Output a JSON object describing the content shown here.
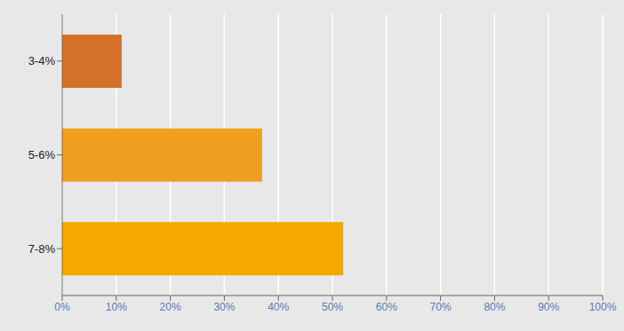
{
  "chart_data": {
    "type": "bar",
    "orientation": "horizontal",
    "categories": [
      "7-8%",
      "5-6%",
      "3-4%"
    ],
    "values": [
      52,
      37,
      11
    ],
    "colors": [
      "#F5A800",
      "#F0A020",
      "#D4702A"
    ],
    "xlim": [
      0,
      100
    ],
    "xticks": [
      {
        "value": 0,
        "label": "0%"
      },
      {
        "value": 10,
        "label": "10%"
      },
      {
        "value": 20,
        "label": "20%"
      },
      {
        "value": 30,
        "label": "30%"
      },
      {
        "value": 40,
        "label": "40%"
      },
      {
        "value": 50,
        "label": "50%"
      },
      {
        "value": 60,
        "label": "60%"
      },
      {
        "value": 70,
        "label": "70%"
      },
      {
        "value": 80,
        "label": "80%"
      },
      {
        "value": 90,
        "label": "90%"
      },
      {
        "value": 100,
        "label": "100%"
      }
    ],
    "grid": true
  }
}
